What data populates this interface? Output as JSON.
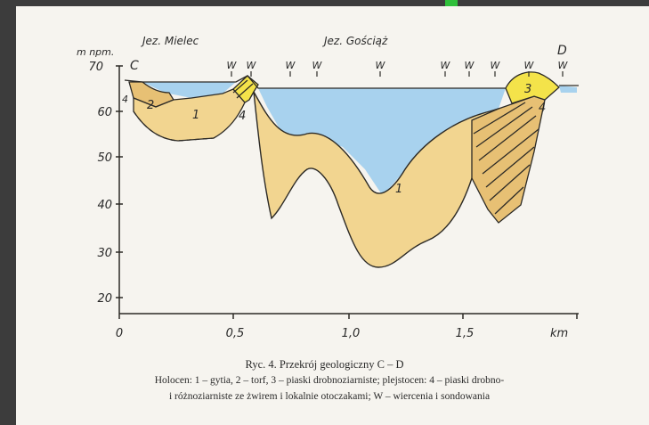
{
  "figure": {
    "axis_unit_label": "m npm.",
    "x_unit": "km",
    "y_ticks": [
      "70",
      "60",
      "50",
      "40",
      "30",
      "20"
    ],
    "x_ticks": [
      "0",
      "0,5",
      "1,0",
      "1,5"
    ],
    "profile_start": "C",
    "profile_end": "D",
    "lake_labels": [
      "Jez. Mielec",
      "Jez. Gościąż"
    ],
    "boreholes": [
      "W",
      "W",
      "W",
      "W",
      "W",
      "W",
      "W",
      "W",
      "W",
      "W"
    ],
    "unit_labels": [
      "1",
      "2",
      "3",
      "4",
      "1",
      "4"
    ],
    "colors": {
      "water": "#a8d2ee",
      "gyttja": "#f2d590",
      "peat": "#e7c074",
      "sand": "#f4e34a",
      "outline": "#2c2a26"
    }
  },
  "caption": {
    "title": "Ryc. 4. Przekrój geologiczny C – D",
    "line1": "Holocen: 1 – gytia, 2 – torf, 3 – piaski drobnoziarniste; plejstocen: 4 – piaski drobno-",
    "line2": "i różnoziarniste ze żwirem i lokalnie otoczakami; W – wiercenia i sondowania"
  }
}
